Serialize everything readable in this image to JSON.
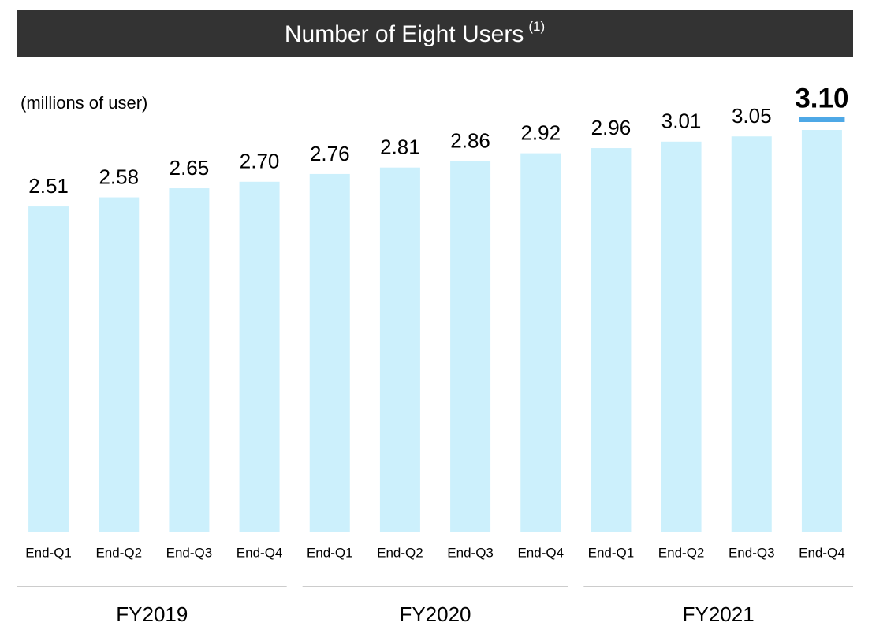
{
  "chart_data": {
    "type": "bar",
    "title": "Number of Eight Users",
    "title_note": "(1)",
    "unit_label": "(millions of user)",
    "categories": [
      "End-Q1",
      "End-Q2",
      "End-Q3",
      "End-Q4",
      "End-Q1",
      "End-Q2",
      "End-Q3",
      "End-Q4",
      "End-Q1",
      "End-Q2",
      "End-Q3",
      "End-Q4"
    ],
    "values": [
      2.51,
      2.58,
      2.65,
      2.7,
      2.76,
      2.81,
      2.86,
      2.92,
      2.96,
      3.01,
      3.05,
      3.1
    ],
    "value_labels": [
      "2.51",
      "2.58",
      "2.65",
      "2.70",
      "2.76",
      "2.81",
      "2.86",
      "2.92",
      "2.96",
      "3.01",
      "3.05",
      "3.10"
    ],
    "groups": [
      {
        "label": "FY2019",
        "count": 4
      },
      {
        "label": "FY2020",
        "count": 4
      },
      {
        "label": "FY2021",
        "count": 4
      }
    ],
    "color": "#ccf0fc",
    "accent_color": "#4ea8e6",
    "ylim": [
      0,
      3.1
    ]
  }
}
